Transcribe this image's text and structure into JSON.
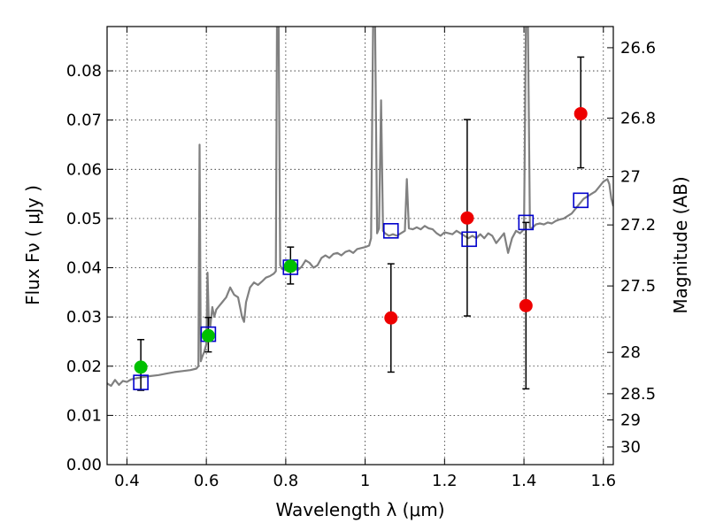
{
  "chart_data": {
    "type": "scatter",
    "xlabel": "Wavelength  λ (μm)",
    "ylabel": "Flux  Fν  ( μJy )",
    "ylabel_right": "Magnitude (AB)",
    "xlim": [
      0.35,
      1.625
    ],
    "ylim": [
      0.0,
      0.089
    ],
    "grid": true,
    "x_ticks": [
      {
        "value": 0.4,
        "label": "0.4"
      },
      {
        "value": 0.6,
        "label": "0.6"
      },
      {
        "value": 0.8,
        "label": "0.8"
      },
      {
        "value": 1.0,
        "label": "1"
      },
      {
        "value": 1.2,
        "label": "1.2"
      },
      {
        "value": 1.4,
        "label": "1.4"
      },
      {
        "value": 1.6,
        "label": "1.6"
      }
    ],
    "y_ticks": [
      {
        "value": 0.0,
        "label": "0.00"
      },
      {
        "value": 0.01,
        "label": "0.01"
      },
      {
        "value": 0.02,
        "label": "0.02"
      },
      {
        "value": 0.03,
        "label": "0.03"
      },
      {
        "value": 0.04,
        "label": "0.04"
      },
      {
        "value": 0.05,
        "label": "0.05"
      },
      {
        "value": 0.06,
        "label": "0.06"
      },
      {
        "value": 0.07,
        "label": "0.07"
      },
      {
        "value": 0.08,
        "label": "0.08"
      }
    ],
    "right_ticks": [
      {
        "flux": 0.0847,
        "label": "26.6"
      },
      {
        "flux": 0.0704,
        "label": "26.8"
      },
      {
        "flux": 0.0585,
        "label": "27"
      },
      {
        "flux": 0.0487,
        "label": "27.2"
      },
      {
        "flux": 0.0363,
        "label": "27.5"
      },
      {
        "flux": 0.0228,
        "label": "28"
      },
      {
        "flux": 0.0144,
        "label": "28.5"
      },
      {
        "flux": 0.0091,
        "label": "29"
      },
      {
        "flux": 0.0036,
        "label": "30"
      }
    ],
    "template_spectrum": {
      "color": "#808080",
      "points": [
        [
          0.35,
          0.0165
        ],
        [
          0.36,
          0.016
        ],
        [
          0.37,
          0.0172
        ],
        [
          0.38,
          0.0162
        ],
        [
          0.39,
          0.017
        ],
        [
          0.4,
          0.0168
        ],
        [
          0.41,
          0.0173
        ],
        [
          0.42,
          0.0175
        ],
        [
          0.44,
          0.0178
        ],
        [
          0.46,
          0.018
        ],
        [
          0.48,
          0.0182
        ],
        [
          0.5,
          0.0185
        ],
        [
          0.52,
          0.0188
        ],
        [
          0.54,
          0.019
        ],
        [
          0.56,
          0.0192
        ],
        [
          0.575,
          0.0195
        ],
        [
          0.58,
          0.02
        ],
        [
          0.583,
          0.065
        ],
        [
          0.586,
          0.021
        ],
        [
          0.59,
          0.022
        ],
        [
          0.595,
          0.023
        ],
        [
          0.6,
          0.0245
        ],
        [
          0.603,
          0.039
        ],
        [
          0.606,
          0.03
        ],
        [
          0.61,
          0.028
        ],
        [
          0.615,
          0.032
        ],
        [
          0.62,
          0.03
        ],
        [
          0.625,
          0.0315
        ],
        [
          0.63,
          0.032
        ],
        [
          0.64,
          0.033
        ],
        [
          0.65,
          0.034
        ],
        [
          0.66,
          0.036
        ],
        [
          0.67,
          0.0345
        ],
        [
          0.68,
          0.034
        ],
        [
          0.69,
          0.03
        ],
        [
          0.695,
          0.029
        ],
        [
          0.7,
          0.033
        ],
        [
          0.71,
          0.036
        ],
        [
          0.72,
          0.037
        ],
        [
          0.73,
          0.0365
        ],
        [
          0.74,
          0.0372
        ],
        [
          0.75,
          0.038
        ],
        [
          0.76,
          0.0383
        ],
        [
          0.77,
          0.0388
        ],
        [
          0.775,
          0.0393
        ],
        [
          0.778,
          0.09
        ],
        [
          0.782,
          0.09
        ],
        [
          0.786,
          0.0405
        ],
        [
          0.79,
          0.0398
        ],
        [
          0.8,
          0.0395
        ],
        [
          0.81,
          0.0402
        ],
        [
          0.82,
          0.04
        ],
        [
          0.83,
          0.0395
        ],
        [
          0.84,
          0.0402
        ],
        [
          0.85,
          0.0415
        ],
        [
          0.86,
          0.041
        ],
        [
          0.87,
          0.04
        ],
        [
          0.88,
          0.0405
        ],
        [
          0.89,
          0.042
        ],
        [
          0.9,
          0.0425
        ],
        [
          0.91,
          0.042
        ],
        [
          0.92,
          0.0428
        ],
        [
          0.93,
          0.043
        ],
        [
          0.94,
          0.0425
        ],
        [
          0.95,
          0.0432
        ],
        [
          0.96,
          0.0435
        ],
        [
          0.97,
          0.043
        ],
        [
          0.98,
          0.0438
        ],
        [
          0.99,
          0.044
        ],
        [
          1.0,
          0.0442
        ],
        [
          1.01,
          0.0445
        ],
        [
          1.015,
          0.046
        ],
        [
          1.02,
          0.09
        ],
        [
          1.025,
          0.09
        ],
        [
          1.03,
          0.047
        ],
        [
          1.035,
          0.048
        ],
        [
          1.04,
          0.074
        ],
        [
          1.045,
          0.0475
        ],
        [
          1.05,
          0.047
        ],
        [
          1.06,
          0.0465
        ],
        [
          1.07,
          0.0468
        ],
        [
          1.08,
          0.0465
        ],
        [
          1.09,
          0.047
        ],
        [
          1.1,
          0.0475
        ],
        [
          1.105,
          0.058
        ],
        [
          1.11,
          0.048
        ],
        [
          1.12,
          0.0478
        ],
        [
          1.13,
          0.0482
        ],
        [
          1.14,
          0.0478
        ],
        [
          1.15,
          0.0485
        ],
        [
          1.16,
          0.048
        ],
        [
          1.17,
          0.0478
        ],
        [
          1.18,
          0.047
        ],
        [
          1.19,
          0.0465
        ],
        [
          1.2,
          0.0472
        ],
        [
          1.21,
          0.047
        ],
        [
          1.22,
          0.0468
        ],
        [
          1.23,
          0.0475
        ],
        [
          1.24,
          0.047
        ],
        [
          1.25,
          0.0465
        ],
        [
          1.26,
          0.046
        ],
        [
          1.27,
          0.0465
        ],
        [
          1.28,
          0.046
        ],
        [
          1.29,
          0.0468
        ],
        [
          1.3,
          0.046
        ],
        [
          1.31,
          0.047
        ],
        [
          1.32,
          0.0465
        ],
        [
          1.33,
          0.045
        ],
        [
          1.34,
          0.046
        ],
        [
          1.35,
          0.047
        ],
        [
          1.36,
          0.043
        ],
        [
          1.37,
          0.046
        ],
        [
          1.38,
          0.0475
        ],
        [
          1.39,
          0.047
        ],
        [
          1.4,
          0.0478
        ],
        [
          1.405,
          0.09
        ],
        [
          1.41,
          0.09
        ],
        [
          1.415,
          0.0482
        ],
        [
          1.42,
          0.048
        ],
        [
          1.43,
          0.0488
        ],
        [
          1.44,
          0.049
        ],
        [
          1.45,
          0.0488
        ],
        [
          1.46,
          0.0492
        ],
        [
          1.47,
          0.049
        ],
        [
          1.48,
          0.0495
        ],
        [
          1.49,
          0.0498
        ],
        [
          1.5,
          0.05
        ],
        [
          1.51,
          0.0505
        ],
        [
          1.52,
          0.051
        ],
        [
          1.53,
          0.052
        ],
        [
          1.54,
          0.053
        ],
        [
          1.55,
          0.054
        ],
        [
          1.56,
          0.0545
        ],
        [
          1.57,
          0.055
        ],
        [
          1.58,
          0.0555
        ],
        [
          1.59,
          0.0565
        ],
        [
          1.6,
          0.0575
        ],
        [
          1.61,
          0.058
        ],
        [
          1.615,
          0.057
        ],
        [
          1.62,
          0.054
        ],
        [
          1.625,
          0.0525
        ]
      ]
    },
    "series": [
      {
        "marker": "square",
        "color": "#0000cc",
        "points": [
          {
            "x": 0.435,
            "y": 0.0167
          },
          {
            "x": 0.605,
            "y": 0.0265
          },
          {
            "x": 0.812,
            "y": 0.0401
          },
          {
            "x": 1.065,
            "y": 0.0475
          },
          {
            "x": 1.262,
            "y": 0.0458
          },
          {
            "x": 1.405,
            "y": 0.0492
          },
          {
            "x": 1.543,
            "y": 0.0537
          }
        ]
      },
      {
        "marker": "circle",
        "color": "#00c000",
        "points": [
          {
            "x": 0.435,
            "y": 0.0198,
            "err_low": 0.0151,
            "err_high": 0.0254
          },
          {
            "x": 0.605,
            "y": 0.0262,
            "err_low": 0.0229,
            "err_high": 0.0299
          },
          {
            "x": 0.812,
            "y": 0.0403,
            "err_low": 0.0367,
            "err_high": 0.0442
          }
        ]
      },
      {
        "marker": "circle",
        "color": "#ee0000",
        "points": [
          {
            "x": 1.065,
            "y": 0.0298,
            "err_low": 0.0188,
            "err_high": 0.0408
          },
          {
            "x": 1.257,
            "y": 0.0501,
            "err_low": 0.0302,
            "err_high": 0.0701
          },
          {
            "x": 1.405,
            "y": 0.0323,
            "err_low": 0.0154,
            "err_high": 0.0492
          },
          {
            "x": 1.543,
            "y": 0.0713,
            "err_low": 0.0603,
            "err_high": 0.0828
          }
        ]
      }
    ]
  }
}
